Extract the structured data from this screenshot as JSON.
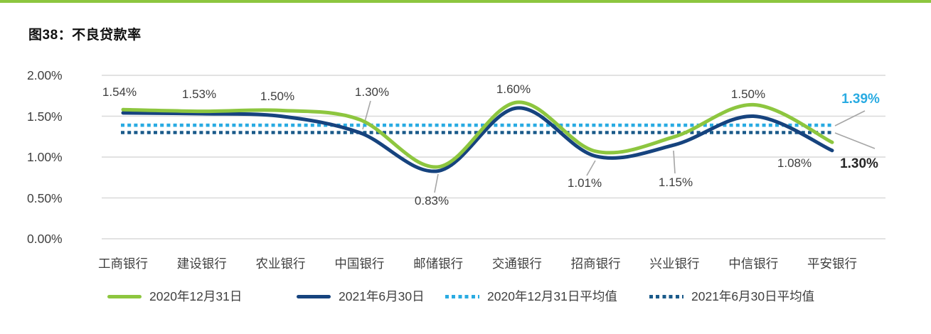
{
  "figure": {
    "title": "图38：不良贷款率",
    "accent_color": "#8DC63F"
  },
  "chart_data": {
    "type": "line",
    "title": "图38：不良贷款率",
    "categories": [
      "工商银行",
      "建设银行",
      "农业银行",
      "中国银行",
      "邮储银行",
      "交通银行",
      "招商银行",
      "兴业银行",
      "中信银行",
      "平安银行"
    ],
    "series": [
      {
        "name": "2020年12月31日",
        "color": "#8DC63F",
        "values": [
          1.58,
          1.56,
          1.57,
          1.46,
          0.88,
          1.67,
          1.07,
          1.25,
          1.64,
          1.18
        ]
      },
      {
        "name": "2021年6月30日",
        "color": "#16437E",
        "values": [
          1.54,
          1.53,
          1.5,
          1.3,
          0.83,
          1.6,
          1.01,
          1.15,
          1.5,
          1.08
        ]
      }
    ],
    "avg_lines": [
      {
        "name": "2020年12月31日平均值",
        "color": "#29ABE2",
        "value": 1.39,
        "label": "1.39%",
        "label_color": "#29ABE2"
      },
      {
        "name": "2021年6月30日平均值",
        "color": "#1A5A8A",
        "value": 1.3,
        "label": "1.30%",
        "label_color": "#262626"
      }
    ],
    "point_labels": [
      "1.54%",
      "1.53%",
      "1.50%",
      "1.30%",
      "0.83%",
      "1.60%",
      "1.01%",
      "1.15%",
      "1.50%",
      "1.08%"
    ],
    "point_labels_series": "2021年6月30日",
    "y_ticks": [
      "2.00%",
      "1.50%",
      "1.00%",
      "0.50%",
      "0.00%"
    ],
    "ylim": [
      0,
      2
    ],
    "grid": true,
    "gridline_color": "#D9D9D9",
    "leader_line_color": "#A6A6A6",
    "legend_position": "bottom"
  }
}
